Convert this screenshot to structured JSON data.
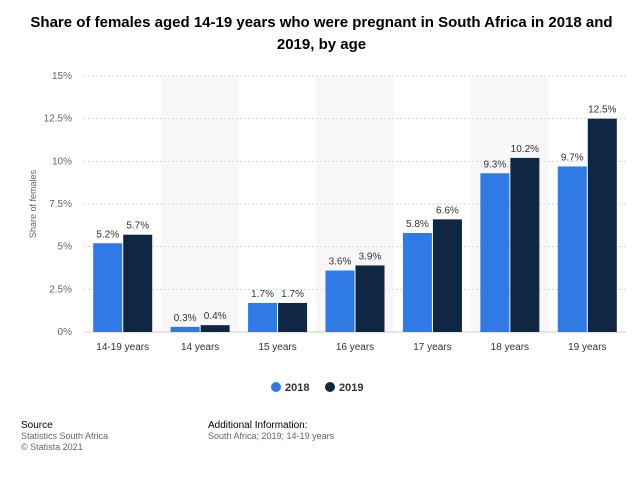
{
  "chart_data": {
    "type": "bar",
    "title": "Share of females aged 14-19 years who were pregnant in South Africa in 2018 and 2019, by age",
    "ylabel": "Share of females",
    "xlabel": "",
    "categories": [
      "14-19 years",
      "14 years",
      "15 years",
      "16 years",
      "17 years",
      "18 years",
      "19 years"
    ],
    "series": [
      {
        "name": "2018",
        "values": [
          5.2,
          0.3,
          1.7,
          3.6,
          5.8,
          9.3,
          9.7
        ],
        "labels": [
          "5.2%",
          "0.3%",
          "1.7%",
          "3.6%",
          "5.8%",
          "9.3%",
          "9.7%"
        ],
        "color": "#2f7ae5"
      },
      {
        "name": "2019",
        "values": [
          5.7,
          0.4,
          1.7,
          3.9,
          6.6,
          10.2,
          12.5
        ],
        "labels": [
          "5.7%",
          "0.4%",
          "1.7%",
          "3.9%",
          "6.6%",
          "10.2%",
          "12.5%"
        ],
        "color": "#0f2742"
      }
    ],
    "ylim": [
      0,
      15
    ],
    "yticks": [
      0,
      2.5,
      5,
      7.5,
      10,
      12.5,
      15
    ],
    "ytick_labels": [
      "0%",
      "2.5%",
      "5%",
      "7.5%",
      "10%",
      "12.5%",
      "15%"
    ],
    "grid": true,
    "legend": "bottom-center"
  },
  "footer": {
    "source_heading": "Source",
    "source_line1": "Statistics South Africa",
    "source_line2": "© Statista 2021",
    "info_heading": "Additional Information:",
    "info_line1": "South Africa; 2019; 14-19 years"
  }
}
